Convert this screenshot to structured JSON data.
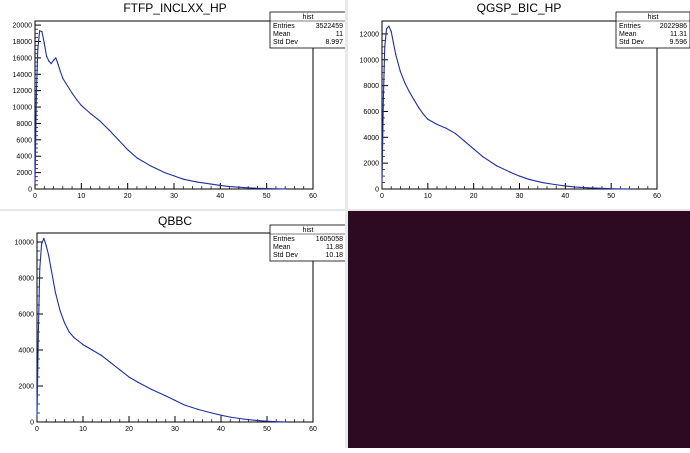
{
  "background_pad_color": "#2d0a21",
  "line_color": "#1f2fa0",
  "chart_data": [
    {
      "type": "line",
      "title": "FTFP_INCLXX_HP",
      "xlim": [
        0,
        60
      ],
      "ylim": [
        0,
        20500
      ],
      "xticks": [
        0,
        10,
        20,
        30,
        40,
        50,
        60
      ],
      "yticks": [
        0,
        2000,
        4000,
        6000,
        8000,
        10000,
        12000,
        14000,
        16000,
        18000,
        20000
      ],
      "xtick_labels": [
        "0",
        "10",
        "20",
        "30",
        "40",
        "50",
        "60"
      ],
      "ytick_labels": [
        "0",
        "2000",
        "4000",
        "6000",
        "8000",
        "10000",
        "12000",
        "14000",
        "16000",
        "18000",
        "20000"
      ],
      "series": [
        {
          "x": [
            0,
            0.3,
            0.6,
            1.0,
            1.5,
            2.0,
            2.5,
            3.0,
            3.5,
            4.0,
            4.5,
            5.0,
            5.5,
            6.0,
            7.0,
            8.0,
            9.0,
            10,
            12,
            14,
            16,
            18,
            20,
            22,
            25,
            28,
            30,
            32,
            35,
            38,
            40,
            42,
            45,
            48,
            50,
            52,
            54
          ],
          "y": [
            600,
            11500,
            17000,
            19300,
            19200,
            17800,
            16200,
            15600,
            15300,
            15700,
            16000,
            15200,
            14300,
            13500,
            12600,
            11700,
            10900,
            10200,
            9200,
            8300,
            7200,
            6000,
            4800,
            3800,
            2800,
            2000,
            1600,
            1200,
            850,
            600,
            430,
            300,
            180,
            90,
            50,
            20,
            5
          ]
        }
      ],
      "stats": {
        "title": "hist",
        "rows": [
          {
            "label": "Entries",
            "value": "3522459"
          },
          {
            "label": "Mean",
            "value": "11"
          },
          {
            "label": "Std Dev",
            "value": "8.997"
          }
        ]
      }
    },
    {
      "type": "line",
      "title": "QGSP_BIC_HP",
      "xlim": [
        0,
        60
      ],
      "ylim": [
        0,
        13000
      ],
      "xticks": [
        0,
        10,
        20,
        30,
        40,
        50,
        60
      ],
      "yticks": [
        0,
        2000,
        4000,
        6000,
        8000,
        10000,
        12000
      ],
      "xtick_labels": [
        "0",
        "10",
        "20",
        "30",
        "40",
        "50",
        "60"
      ],
      "ytick_labels": [
        "0",
        "2000",
        "4000",
        "6000",
        "8000",
        "10000",
        "12000"
      ],
      "series": [
        {
          "x": [
            0,
            0.3,
            0.6,
            1.0,
            1.5,
            2.0,
            2.5,
            3.0,
            4.0,
            5.0,
            6.0,
            7.0,
            8.0,
            9.0,
            10,
            12,
            14,
            16,
            18,
            20,
            22,
            25,
            28,
            30,
            32,
            35,
            38,
            40,
            42,
            45,
            48,
            50,
            52,
            54
          ],
          "y": [
            300,
            7000,
            11000,
            12400,
            12600,
            12200,
            11300,
            10400,
            9100,
            8200,
            7500,
            6900,
            6300,
            5800,
            5400,
            5000,
            4700,
            4300,
            3700,
            3100,
            2500,
            1800,
            1300,
            1000,
            750,
            500,
            330,
            240,
            160,
            90,
            50,
            25,
            10,
            3
          ]
        }
      ],
      "stats": {
        "title": "hist",
        "rows": [
          {
            "label": "Entries",
            "value": "2022986"
          },
          {
            "label": "Mean",
            "value": "11.31"
          },
          {
            "label": "Std Dev",
            "value": "9.596"
          }
        ]
      }
    },
    {
      "type": "line",
      "title": "QBBC",
      "xlim": [
        0,
        60
      ],
      "ylim": [
        0,
        10500
      ],
      "xticks": [
        0,
        10,
        20,
        30,
        40,
        50,
        60
      ],
      "yticks": [
        0,
        2000,
        4000,
        6000,
        8000,
        10000
      ],
      "xtick_labels": [
        "0",
        "10",
        "20",
        "30",
        "40",
        "50",
        "60"
      ],
      "ytick_labels": [
        "0",
        "2000",
        "4000",
        "6000",
        "8000",
        "10000"
      ],
      "series": [
        {
          "x": [
            0,
            0.3,
            0.6,
            1.0,
            1.5,
            2.0,
            2.5,
            3.0,
            4.0,
            5.0,
            6.0,
            7.0,
            8.0,
            9.0,
            10,
            12,
            14,
            16,
            18,
            20,
            22,
            25,
            28,
            30,
            32,
            35,
            38,
            40,
            42,
            45,
            48,
            50,
            52,
            54
          ],
          "y": [
            300,
            5000,
            8500,
            9900,
            10200,
            9800,
            9300,
            8600,
            7200,
            6200,
            5500,
            5000,
            4700,
            4500,
            4300,
            4000,
            3700,
            3300,
            2900,
            2500,
            2200,
            1800,
            1450,
            1200,
            950,
            700,
            500,
            380,
            270,
            160,
            80,
            45,
            20,
            5
          ]
        }
      ],
      "stats": {
        "title": "hist",
        "rows": [
          {
            "label": "Entries",
            "value": "1605058"
          },
          {
            "label": "Mean",
            "value": "11.88"
          },
          {
            "label": "Std Dev",
            "value": "10.18"
          }
        ]
      }
    }
  ]
}
